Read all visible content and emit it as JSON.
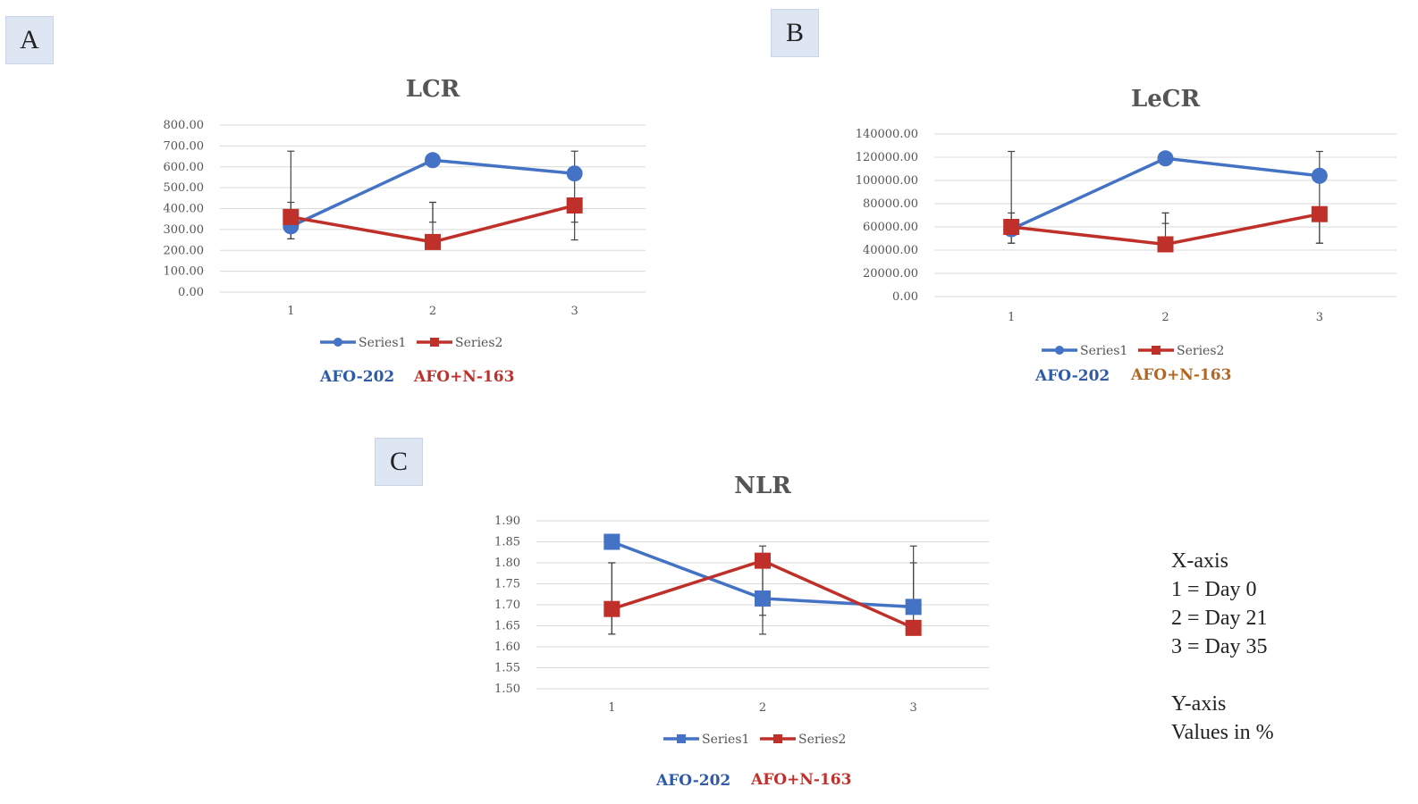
{
  "panels": [
    {
      "label": "A",
      "chart_data": {
        "type": "line",
        "title": "LCR",
        "categories": [
          "1",
          "2",
          "3"
        ],
        "ylim": [
          0,
          800
        ],
        "yticks": [
          "800.00",
          "700.00",
          "600.00",
          "500.00",
          "400.00",
          "300.00",
          "200.00",
          "100.00",
          "0.00"
        ],
        "yticks_values": [
          800,
          700,
          600,
          500,
          400,
          300,
          200,
          100,
          0
        ],
        "grid": true,
        "legend": "bottom",
        "series": [
          {
            "name": "Series1",
            "color": "#4472c4",
            "marker": "circle",
            "values": [
              315,
              632,
              568
            ],
            "err_low": [
              255,
              335,
              335
            ],
            "err_high": [
              430,
              430,
              675
            ]
          },
          {
            "name": "Series2",
            "color": "#c0302a",
            "marker": "square",
            "values": [
              360,
              240,
              415
            ],
            "err_low": [
              255,
              240,
              250
            ],
            "err_high": [
              675,
              430,
              415
            ]
          }
        ],
        "group_labels": [
          {
            "text": "AFO-202",
            "color": "#2e5aa8"
          },
          {
            "text": "AFO+N-163",
            "color": "#c0302a"
          }
        ]
      }
    },
    {
      "label": "B",
      "chart_data": {
        "type": "line",
        "title": "LeCR",
        "categories": [
          "1",
          "2",
          "3"
        ],
        "ylim": [
          0,
          140000
        ],
        "yticks": [
          "140000.00",
          "120000.00",
          "100000.00",
          "80000.00",
          "60000.00",
          "40000.00",
          "20000.00",
          "0.00"
        ],
        "yticks_values": [
          140000,
          120000,
          100000,
          80000,
          60000,
          40000,
          20000,
          0
        ],
        "grid": true,
        "legend": "bottom",
        "series": [
          {
            "name": "Series1",
            "color": "#4472c4",
            "marker": "circle",
            "values": [
              58000,
              119000,
              104000
            ],
            "err_low": [
              46000,
              63000,
              46000
            ],
            "err_high": [
              72000,
              72000,
              125000
            ]
          },
          {
            "name": "Series2",
            "color": "#c0302a",
            "marker": "square",
            "values": [
              60000,
              45000,
              71000
            ],
            "err_low": [
              46000,
              45000,
              46000
            ],
            "err_high": [
              125000,
              72000,
              71000
            ]
          }
        ],
        "group_labels": [
          {
            "text": "AFO-202",
            "color": "#2e5aa8"
          },
          {
            "text": "AFO+N-163",
            "color": "#b5651d"
          }
        ]
      }
    },
    {
      "label": "C",
      "chart_data": {
        "type": "line",
        "title": "NLR",
        "categories": [
          "1",
          "2",
          "3"
        ],
        "ylim": [
          1.5,
          1.9
        ],
        "yticks": [
          "1.90",
          "1.85",
          "1.80",
          "1.75",
          "1.70",
          "1.65",
          "1.60",
          "1.55",
          "1.50"
        ],
        "yticks_values": [
          1.9,
          1.85,
          1.8,
          1.75,
          1.7,
          1.65,
          1.6,
          1.55,
          1.5
        ],
        "grid": true,
        "legend": "bottom",
        "series": [
          {
            "name": "Series1",
            "color": "#4472c4",
            "marker": "square",
            "values": [
              1.85,
              1.715,
              1.695
            ],
            "err_low": [
              1.63,
              1.675,
              1.695
            ],
            "err_high": [
              1.8,
              1.8,
              1.8
            ]
          },
          {
            "name": "Series2",
            "color": "#c0302a",
            "marker": "square",
            "values": [
              1.69,
              1.805,
              1.645
            ],
            "err_low": [
              1.63,
              1.63,
              1.645
            ],
            "err_high": [
              1.8,
              1.84,
              1.84
            ]
          }
        ],
        "group_labels": [
          {
            "text": "AFO-202",
            "color": "#2e5aa8"
          },
          {
            "text": "AFO+N-163",
            "color": "#c0302a"
          }
        ]
      }
    }
  ],
  "axis_note": {
    "lines": [
      "X-axis",
      "1 = Day  0",
      "2 = Day  21",
      "3 = Day  35",
      "",
      "Y-axis",
      "Values in %"
    ]
  }
}
